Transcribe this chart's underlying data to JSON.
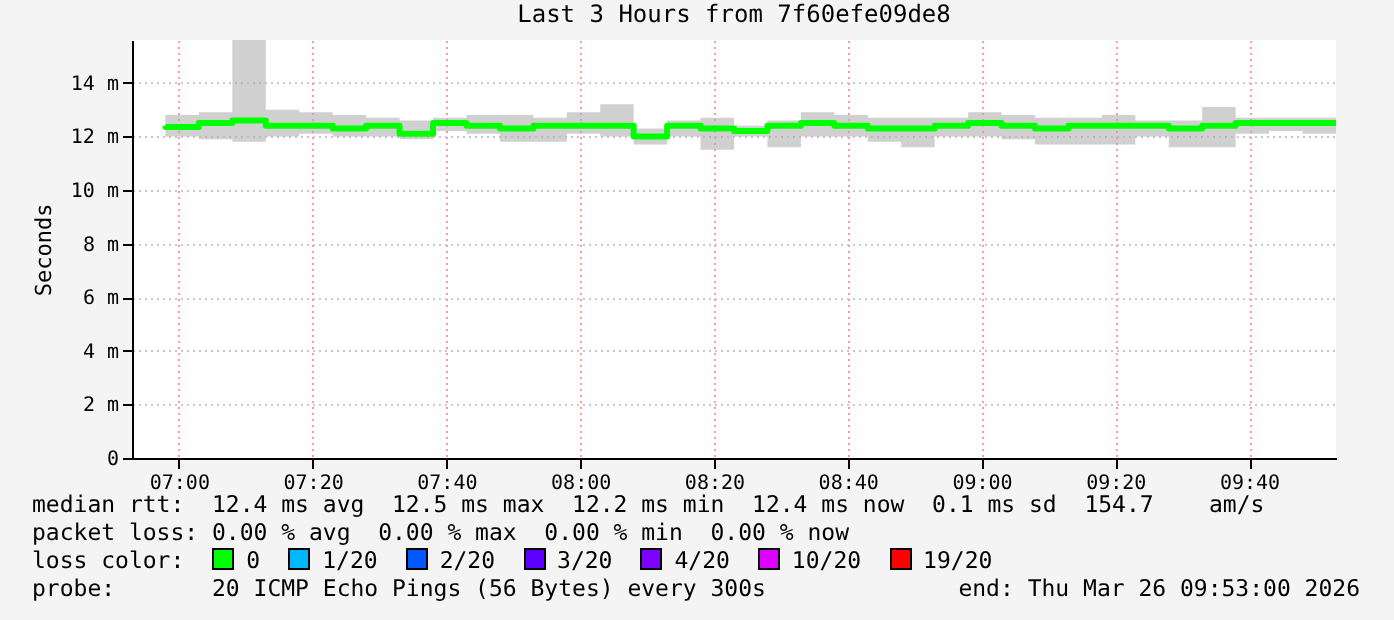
{
  "chart_data": {
    "type": "step",
    "title": "Last 3 Hours from 7f60efe09de8",
    "ylabel": "Seconds",
    "x": [
      "2026-03-26T06:58",
      "2026-03-26T07:03",
      "2026-03-26T07:08",
      "2026-03-26T07:13",
      "2026-03-26T07:18",
      "2026-03-26T07:23",
      "2026-03-26T07:28",
      "2026-03-26T07:33",
      "2026-03-26T07:38",
      "2026-03-26T07:43",
      "2026-03-26T07:48",
      "2026-03-26T07:53",
      "2026-03-26T07:58",
      "2026-03-26T08:03",
      "2026-03-26T08:08",
      "2026-03-26T08:13",
      "2026-03-26T08:18",
      "2026-03-26T08:23",
      "2026-03-26T08:28",
      "2026-03-26T08:33",
      "2026-03-26T08:38",
      "2026-03-26T08:43",
      "2026-03-26T08:48",
      "2026-03-26T08:53",
      "2026-03-26T08:58",
      "2026-03-26T09:03",
      "2026-03-26T09:08",
      "2026-03-26T09:13",
      "2026-03-26T09:18",
      "2026-03-26T09:23",
      "2026-03-26T09:28",
      "2026-03-26T09:33",
      "2026-03-26T09:38",
      "2026-03-26T09:43",
      "2026-03-26T09:48",
      "2026-03-26T09:53"
    ],
    "series": [
      {
        "color": "#00ff00",
        "values": [
          12.4,
          12.35,
          12.5,
          12.6,
          12.4,
          12.4,
          12.3,
          12.4,
          12.1,
          12.5,
          12.4,
          12.3,
          12.4,
          12.4,
          12.4,
          12.0,
          12.4,
          12.3,
          12.2,
          12.4,
          12.5,
          12.4,
          12.3,
          12.3,
          12.4,
          12.5,
          12.4,
          12.3,
          12.4,
          12.4,
          12.4,
          12.3,
          12.4,
          12.5,
          12.5,
          12.5
        ],
        "lower": [
          11.9,
          12.0,
          11.9,
          11.8,
          12.0,
          12.1,
          12.0,
          12.0,
          11.9,
          12.2,
          12.1,
          11.8,
          11.8,
          12.1,
          12.0,
          11.7,
          12.0,
          11.5,
          12.0,
          11.6,
          12.0,
          12.0,
          11.8,
          11.6,
          12.0,
          12.0,
          11.9,
          11.7,
          11.7,
          11.7,
          12.0,
          11.6,
          11.6,
          12.1,
          12.2,
          12.1
        ],
        "upper": [
          13.0,
          12.8,
          12.9,
          15.6,
          13.0,
          12.9,
          12.8,
          12.7,
          12.6,
          12.7,
          12.8,
          12.8,
          12.7,
          12.9,
          13.2,
          12.3,
          12.6,
          12.7,
          12.4,
          12.6,
          12.9,
          12.8,
          12.7,
          12.7,
          12.7,
          12.9,
          12.8,
          12.7,
          12.7,
          12.8,
          12.6,
          12.6,
          13.1,
          12.7,
          12.7,
          12.7
        ]
      }
    ],
    "xlim": [
      "2026-03-26T06:53",
      "2026-03-26T09:53"
    ],
    "xticks": [
      {
        "value": "2026-03-26T07:00",
        "label": "07:00"
      },
      {
        "value": "2026-03-26T07:20",
        "label": "07:20"
      },
      {
        "value": "2026-03-26T07:40",
        "label": "07:40"
      },
      {
        "value": "2026-03-26T08:00",
        "label": "08:00"
      },
      {
        "value": "2026-03-26T08:20",
        "label": "08:20"
      },
      {
        "value": "2026-03-26T08:40",
        "label": "08:40"
      },
      {
        "value": "2026-03-26T09:00",
        "label": "09:00"
      },
      {
        "value": "2026-03-26T09:20",
        "label": "09:20"
      },
      {
        "value": "2026-03-26T09:40",
        "label": "09:40"
      }
    ],
    "ylim": [
      0,
      15.6
    ],
    "yticks": [
      0,
      {
        "value": 2,
        "label": "2 m"
      },
      {
        "value": 4,
        "label": "4 m"
      },
      {
        "value": 6,
        "label": "6 m"
      },
      {
        "value": 8,
        "label": "8 m"
      },
      {
        "value": 10,
        "label": "10 m"
      },
      {
        "value": 12,
        "label": "12 m"
      },
      {
        "value": 14,
        "label": "14 m"
      }
    ],
    "grid": true,
    "annotations": [
      "median rtt:  12.4 ms avg  12.5 ms max  12.2 ms min  12.4 ms now  0.1 ms sd  154.7    am/s",
      "packet loss: 0.00 % avg  0.00 % max  0.00 % min  0.00 % now",
      "loss color:",
      "0",
      "1/20",
      "2/20",
      "3/20",
      "4/20",
      "10/20",
      "19/20",
      "probe:       20 ICMP Echo Pings (56 Bytes) every 300s",
      "end: Thu Mar 26 09:53:00 2026"
    ]
  }
}
